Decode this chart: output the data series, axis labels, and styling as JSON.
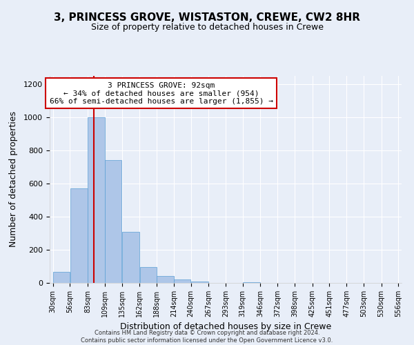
{
  "title": "3, PRINCESS GROVE, WISTASTON, CREWE, CW2 8HR",
  "subtitle": "Size of property relative to detached houses in Crewe",
  "xlabel": "Distribution of detached houses by size in Crewe",
  "ylabel": "Number of detached properties",
  "bin_edges": [
    30,
    56,
    83,
    109,
    135,
    162,
    188,
    214,
    240,
    267,
    293,
    319,
    346,
    372,
    398,
    425,
    451,
    477,
    503,
    530,
    556
  ],
  "bar_heights": [
    65,
    570,
    1000,
    740,
    310,
    95,
    40,
    20,
    10,
    0,
    0,
    5,
    0,
    0,
    0,
    0,
    0,
    0,
    0,
    0
  ],
  "bar_color": "#aec6e8",
  "bar_edge_color": "#5a9fd4",
  "property_size": 92,
  "vline_color": "#cc0000",
  "annotation_title": "3 PRINCESS GROVE: 92sqm",
  "annotation_line1": "← 34% of detached houses are smaller (954)",
  "annotation_line2": "66% of semi-detached houses are larger (1,855) →",
  "annotation_box_color": "#cc0000",
  "ylim": [
    0,
    1250
  ],
  "yticks": [
    0,
    200,
    400,
    600,
    800,
    1000,
    1200
  ],
  "footer_line1": "Contains HM Land Registry data © Crown copyright and database right 2024.",
  "footer_line2": "Contains public sector information licensed under the Open Government Licence v3.0.",
  "bg_color": "#e8eef8",
  "plot_bg_color": "#e8eef8"
}
